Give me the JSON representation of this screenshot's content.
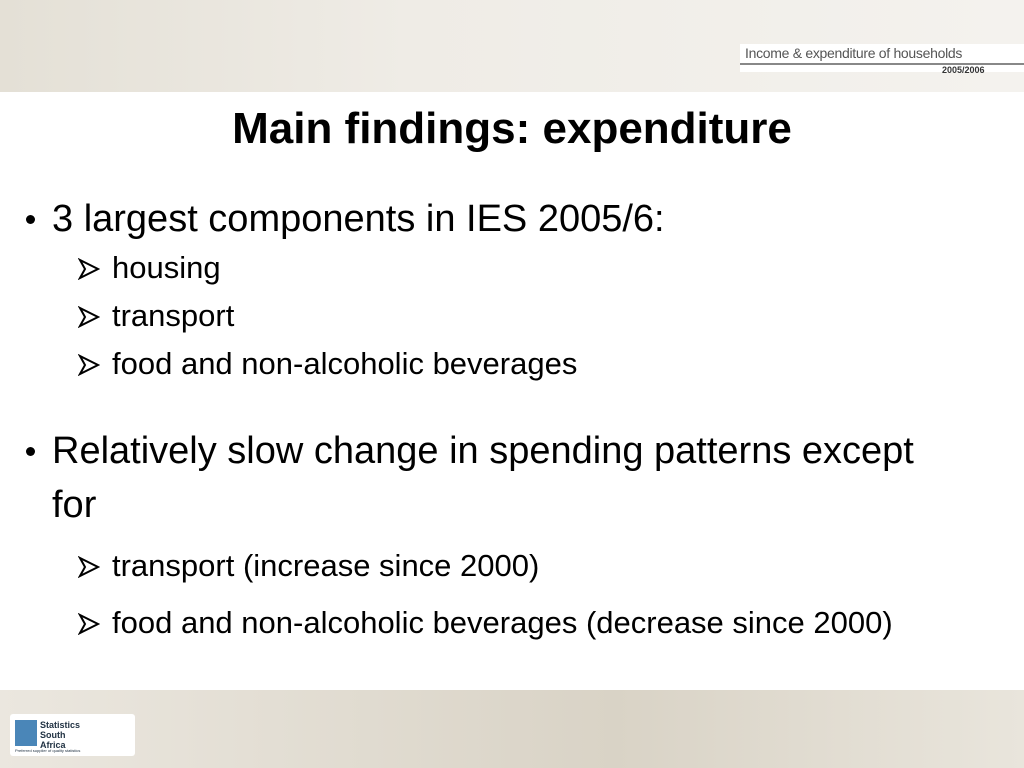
{
  "header": {
    "banner_title": "Income & expenditure of households",
    "banner_year": "2005/2006"
  },
  "title": "Main findings: expenditure",
  "bullets": [
    {
      "text": "3 largest components in IES 2005/6:",
      "subitems": [
        "housing",
        "transport",
        "food and non-alcoholic beverages"
      ]
    },
    {
      "text": "Relatively slow change in spending patterns except for",
      "subitems": [
        "transport (increase since 2000)",
        "food and non-alcoholic beverages (decrease since 2000)"
      ]
    }
  ],
  "footer": {
    "logo_name": "Statistics South Africa",
    "logo_tagline": "Preferred supplier of quality statistics"
  }
}
